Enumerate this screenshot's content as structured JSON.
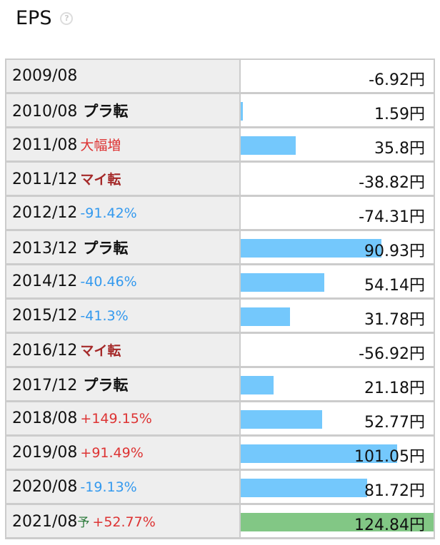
{
  "title": "EPS",
  "help_icon": "question-circle-icon",
  "colors": {
    "bar": "#74c8fc",
    "forecast_bar": "#82c785",
    "plus": "#dd3333",
    "minus": "#3399ee",
    "mai": "#a52a2a"
  },
  "rows": [
    {
      "period": "2009/08",
      "note": "",
      "note_type": "",
      "value": -6.92,
      "label": "-6.92円"
    },
    {
      "period": "2010/08",
      "note": "プラ転",
      "note_type": "pura",
      "value": 1.59,
      "label": "1.59円"
    },
    {
      "period": "2011/08",
      "note": "大幅増",
      "note_type": "plus",
      "value": 35.8,
      "label": "35.8円"
    },
    {
      "period": "2011/12",
      "note": "マイ転",
      "note_type": "mai",
      "value": -38.82,
      "label": "-38.82円"
    },
    {
      "period": "2012/12",
      "note": "-91.42%",
      "note_type": "minus",
      "value": -74.31,
      "label": "-74.31円"
    },
    {
      "period": "2013/12",
      "note": "プラ転",
      "note_type": "pura",
      "value": 90.93,
      "label": "90.93円"
    },
    {
      "period": "2014/12",
      "note": "-40.46%",
      "note_type": "minus",
      "value": 54.14,
      "label": "54.14円"
    },
    {
      "period": "2015/12",
      "note": "-41.3%",
      "note_type": "minus",
      "value": 31.78,
      "label": "31.78円"
    },
    {
      "period": "2016/12",
      "note": "マイ転",
      "note_type": "mai",
      "value": -56.92,
      "label": "-56.92円"
    },
    {
      "period": "2017/12",
      "note": "プラ転",
      "note_type": "pura",
      "value": 21.18,
      "label": "21.18円"
    },
    {
      "period": "2018/08",
      "note": "+149.15%",
      "note_type": "plus",
      "value": 52.77,
      "label": "52.77円"
    },
    {
      "period": "2019/08",
      "note": "+91.49%",
      "note_type": "plus",
      "value": 101.05,
      "label": "101.05円"
    },
    {
      "period": "2020/08",
      "note": "-19.13%",
      "note_type": "minus",
      "value": 81.72,
      "label": "81.72円"
    },
    {
      "period": "2021/08",
      "forecast": "予",
      "note": "+52.77%",
      "note_type": "plus",
      "value": 124.84,
      "label": "124.84円"
    }
  ]
}
